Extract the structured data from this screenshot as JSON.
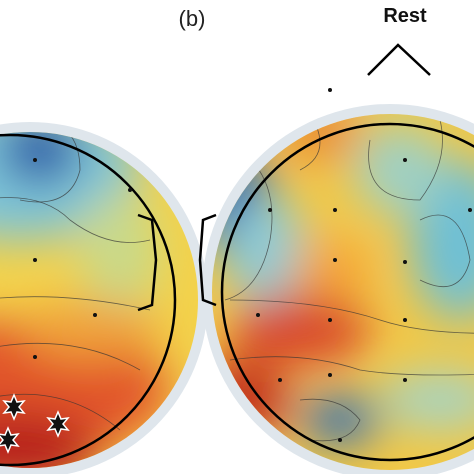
{
  "panel": {
    "label": "(b)",
    "title": "Rest"
  }
}
